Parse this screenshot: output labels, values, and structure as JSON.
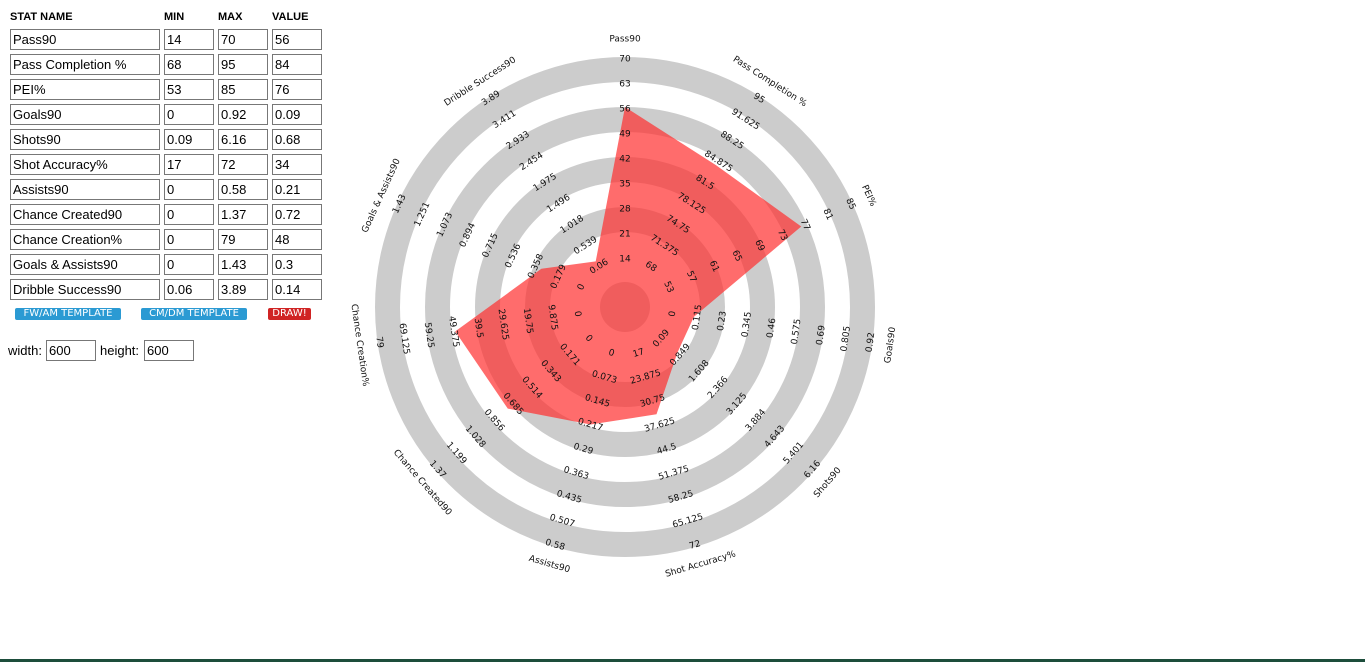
{
  "form": {
    "headers": [
      "STAT NAME",
      "MIN",
      "MAX",
      "VALUE"
    ],
    "buttons": [
      "FW/AM TEMPLATE",
      "CM/DM TEMPLATE",
      "DRAW!"
    ],
    "width_label": "width:",
    "width": "600",
    "height_label": "height:",
    "height": "600"
  },
  "chart_data": {
    "type": "radar",
    "color": "#ff2e2e",
    "axes": [
      {
        "name": "Pass90",
        "lim": [
          14,
          70
        ],
        "value": 56,
        "ticks": [
          14,
          21,
          28,
          35,
          42,
          49,
          56,
          63,
          70
        ]
      },
      {
        "name": "Pass Completion %",
        "lim": [
          68,
          95
        ],
        "value": 84,
        "ticks": [
          68,
          71.375,
          74.75,
          78.125,
          81.5,
          84.875,
          88.25,
          91.625,
          95
        ]
      },
      {
        "name": "PEI%",
        "lim": [
          53,
          85
        ],
        "value": 76,
        "ticks": [
          53,
          57,
          61,
          65,
          69,
          73,
          77,
          81,
          85
        ]
      },
      {
        "name": "Goals90",
        "lim": [
          0,
          0.92
        ],
        "value": 0.09,
        "ticks": [
          0,
          0.115,
          0.23,
          0.345,
          0.46,
          0.575,
          0.69,
          0.805,
          0.92
        ]
      },
      {
        "name": "Shots90",
        "lim": [
          0.09,
          6.16
        ],
        "value": 0.68,
        "ticks": [
          0.09,
          0.849,
          1.608,
          2.366,
          3.125,
          3.884,
          4.643,
          5.401,
          6.16
        ]
      },
      {
        "name": "Shot Accuracy%",
        "lim": [
          17,
          72
        ],
        "value": 34,
        "ticks": [
          17,
          23.875,
          30.75,
          37.625,
          44.5,
          51.375,
          58.25,
          65.125,
          72
        ]
      },
      {
        "name": "Assists90",
        "lim": [
          0,
          0.58
        ],
        "value": 0.21,
        "ticks": [
          0,
          0.073,
          0.145,
          0.217,
          0.29,
          0.363,
          0.435,
          0.507,
          0.58
        ]
      },
      {
        "name": "Chance Created90",
        "lim": [
          0,
          1.37
        ],
        "value": 0.72,
        "ticks": [
          0,
          0.171,
          0.343,
          0.514,
          0.685,
          0.856,
          1.028,
          1.199,
          1.37
        ]
      },
      {
        "name": "Chance Creation%",
        "lim": [
          0,
          79
        ],
        "value": 48,
        "ticks": [
          0,
          9.875,
          19.75,
          29.625,
          39.5,
          49.375,
          59.25,
          69.125,
          79
        ]
      },
      {
        "name": "Goals & Assists90",
        "lim": [
          0,
          1.43
        ],
        "value": 0.3,
        "ticks": [
          0,
          0.179,
          0.358,
          0.536,
          0.715,
          0.894,
          1.073,
          1.251,
          1.43
        ]
      },
      {
        "name": "Dribble Success90",
        "lim": [
          0.06,
          3.89
        ],
        "value": 0.14,
        "ticks": [
          0.06,
          0.539,
          1.018,
          1.496,
          1.975,
          2.454,
          2.933,
          3.411,
          3.89
        ]
      }
    ]
  }
}
